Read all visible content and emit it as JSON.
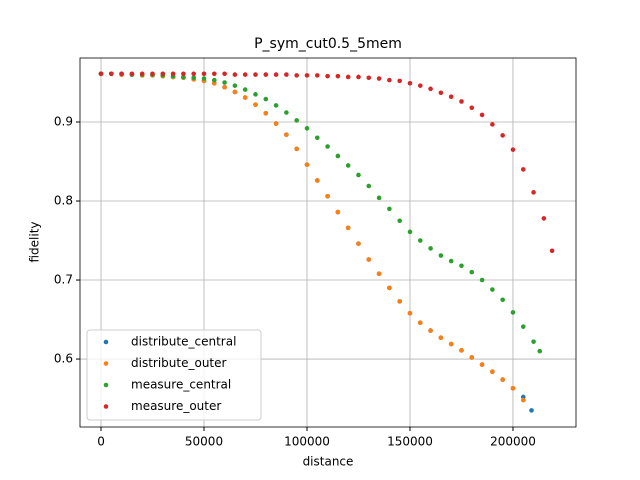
{
  "chart_data": {
    "type": "scatter",
    "title": "P_sym_cut0.5_5mem",
    "x_label": "distance",
    "y_label": "fidelity",
    "xlim": [
      -10200,
      230600
    ],
    "ylim": [
      0.514,
      0.981
    ],
    "xticks": [
      0,
      50000,
      100000,
      150000,
      200000
    ],
    "yticks": [
      0.6,
      0.7,
      0.8,
      0.9
    ],
    "grid": true,
    "legend_position": "lower left",
    "series": [
      {
        "name": "distribute_central",
        "color": "#1f77b4",
        "x": [
          0,
          5000,
          10000,
          15000,
          20000,
          25000,
          30000,
          35000,
          40000,
          45000,
          50000,
          55000,
          60000,
          65000,
          70000,
          75000,
          80000,
          85000,
          90000,
          95000,
          100000,
          105000,
          110000,
          115000,
          120000,
          125000,
          130000,
          135000,
          140000,
          145000,
          150000,
          155000,
          160000,
          165000,
          170000,
          175000,
          180000,
          185000,
          190000,
          195000,
          200000,
          205000,
          209000
        ],
        "values": [
          0.961,
          0.961,
          0.96,
          0.96,
          0.959,
          0.959,
          0.958,
          0.957,
          0.956,
          0.954,
          0.952,
          0.949,
          0.944,
          0.938,
          0.931,
          0.922,
          0.911,
          0.898,
          0.884,
          0.866,
          0.846,
          0.826,
          0.806,
          0.786,
          0.766,
          0.746,
          0.726,
          0.708,
          0.69,
          0.673,
          0.658,
          0.646,
          0.636,
          0.627,
          0.619,
          0.611,
          0.602,
          0.593,
          0.584,
          0.574,
          0.563,
          0.552,
          0.535
        ]
      },
      {
        "name": "distribute_outer",
        "color": "#ff7f0e",
        "x": [
          0,
          5000,
          10000,
          15000,
          20000,
          25000,
          30000,
          35000,
          40000,
          45000,
          50000,
          55000,
          60000,
          65000,
          70000,
          75000,
          80000,
          85000,
          90000,
          95000,
          100000,
          105000,
          110000,
          115000,
          120000,
          125000,
          130000,
          135000,
          140000,
          145000,
          150000,
          155000,
          160000,
          165000,
          170000,
          175000,
          180000,
          185000,
          190000,
          195000,
          200000,
          205000
        ],
        "values": [
          0.961,
          0.961,
          0.96,
          0.96,
          0.959,
          0.959,
          0.958,
          0.957,
          0.956,
          0.954,
          0.952,
          0.949,
          0.944,
          0.938,
          0.931,
          0.922,
          0.911,
          0.898,
          0.884,
          0.866,
          0.846,
          0.826,
          0.806,
          0.786,
          0.766,
          0.746,
          0.726,
          0.708,
          0.69,
          0.673,
          0.658,
          0.646,
          0.636,
          0.627,
          0.619,
          0.611,
          0.602,
          0.593,
          0.584,
          0.574,
          0.563,
          0.548
        ]
      },
      {
        "name": "measure_central",
        "color": "#2ca02c",
        "x": [
          0,
          5000,
          10000,
          15000,
          20000,
          25000,
          30000,
          35000,
          40000,
          45000,
          50000,
          55000,
          60000,
          65000,
          70000,
          75000,
          80000,
          85000,
          90000,
          95000,
          100000,
          105000,
          110000,
          115000,
          120000,
          125000,
          130000,
          135000,
          140000,
          145000,
          150000,
          155000,
          160000,
          165000,
          170000,
          175000,
          180000,
          185000,
          190000,
          195000,
          200000,
          205000,
          210000,
          213000
        ],
        "values": [
          0.961,
          0.961,
          0.961,
          0.96,
          0.96,
          0.96,
          0.959,
          0.958,
          0.957,
          0.956,
          0.955,
          0.953,
          0.95,
          0.946,
          0.941,
          0.935,
          0.929,
          0.921,
          0.912,
          0.902,
          0.892,
          0.88,
          0.869,
          0.857,
          0.845,
          0.833,
          0.819,
          0.804,
          0.79,
          0.775,
          0.761,
          0.75,
          0.74,
          0.731,
          0.724,
          0.718,
          0.71,
          0.7,
          0.688,
          0.675,
          0.659,
          0.641,
          0.622,
          0.61
        ]
      },
      {
        "name": "measure_outer",
        "color": "#d62728",
        "x": [
          0,
          5000,
          10000,
          15000,
          20000,
          25000,
          30000,
          35000,
          40000,
          45000,
          50000,
          55000,
          60000,
          65000,
          70000,
          75000,
          80000,
          85000,
          90000,
          95000,
          100000,
          105000,
          110000,
          115000,
          120000,
          125000,
          130000,
          135000,
          140000,
          145000,
          150000,
          155000,
          160000,
          165000,
          170000,
          175000,
          180000,
          185000,
          190000,
          195000,
          200000,
          205000,
          210000,
          215000,
          219000
        ],
        "values": [
          0.961,
          0.961,
          0.961,
          0.961,
          0.961,
          0.961,
          0.961,
          0.961,
          0.961,
          0.961,
          0.961,
          0.961,
          0.961,
          0.96,
          0.96,
          0.96,
          0.96,
          0.96,
          0.96,
          0.959,
          0.959,
          0.959,
          0.958,
          0.958,
          0.957,
          0.957,
          0.956,
          0.955,
          0.953,
          0.952,
          0.949,
          0.946,
          0.942,
          0.937,
          0.932,
          0.926,
          0.918,
          0.909,
          0.897,
          0.883,
          0.865,
          0.84,
          0.811,
          0.778,
          0.737
        ]
      }
    ]
  }
}
